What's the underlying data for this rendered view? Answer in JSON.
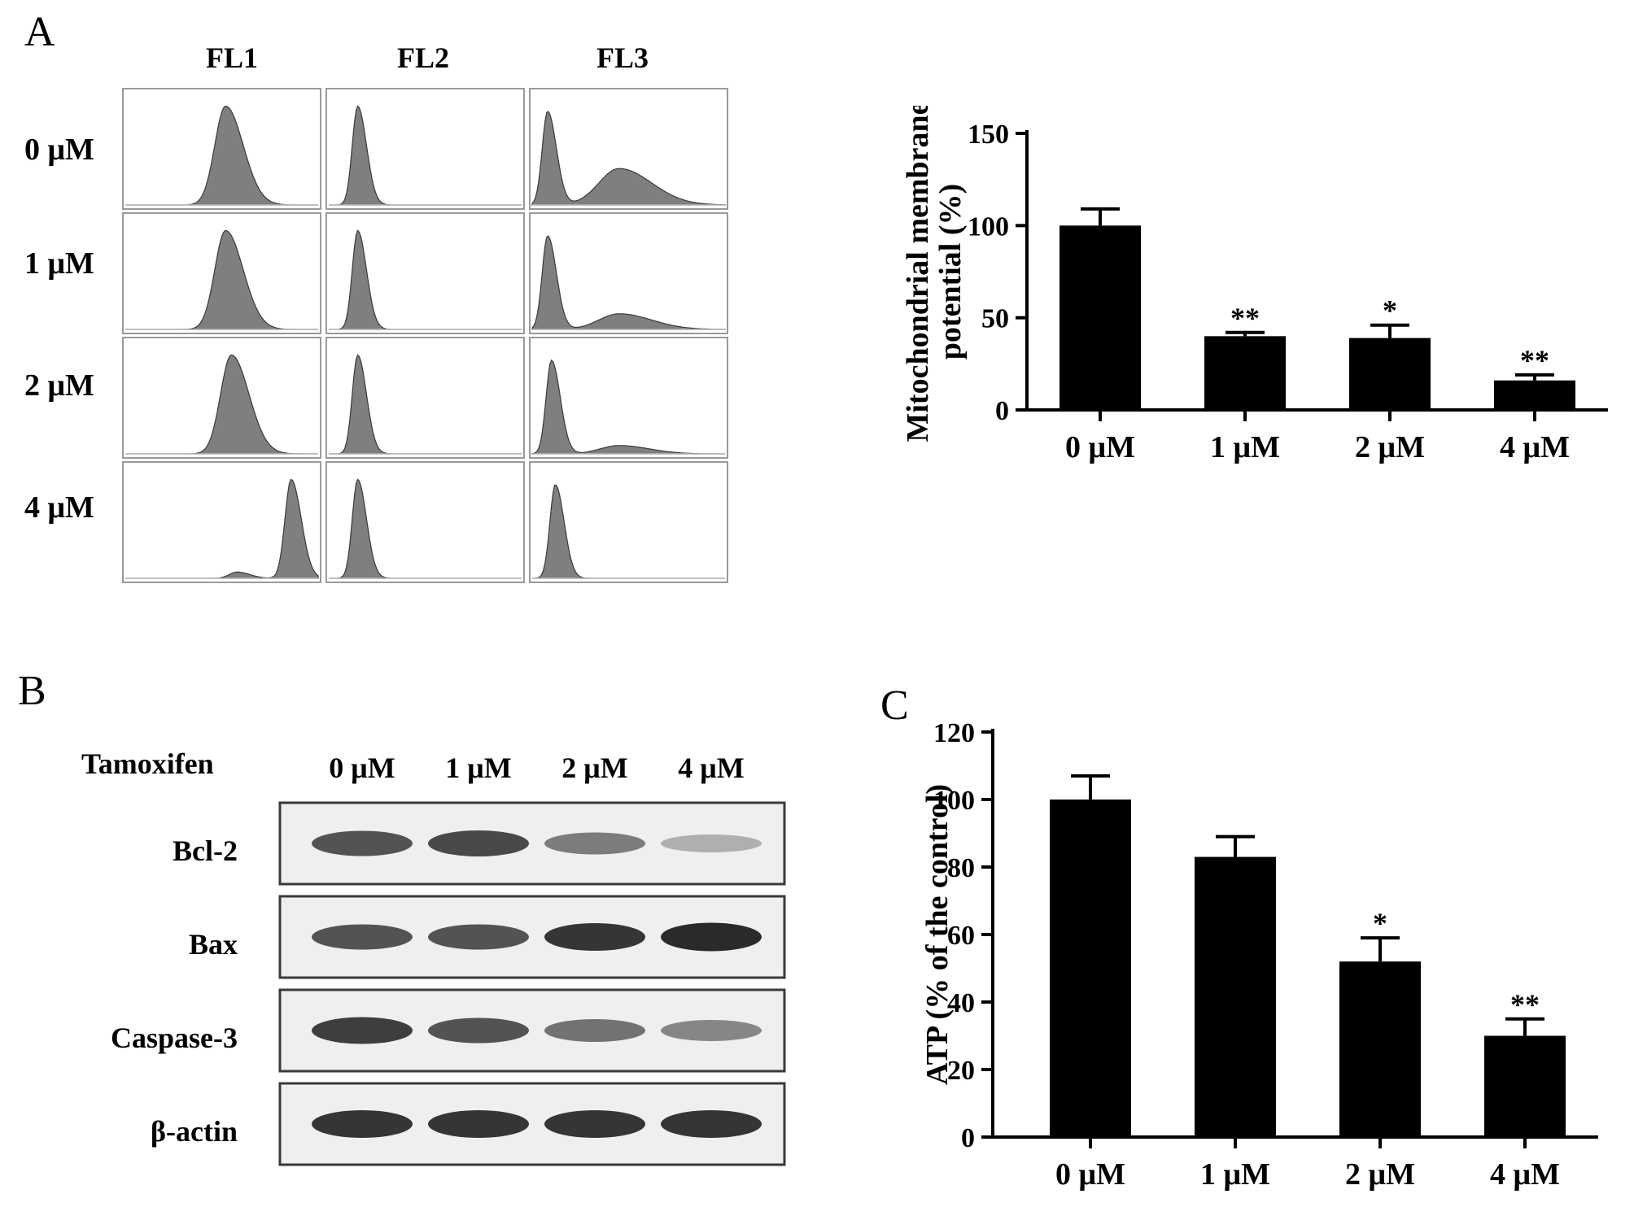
{
  "panels": {
    "A": "A",
    "B": "B",
    "C": "C"
  },
  "panelA": {
    "flow_columns": [
      "FL1",
      "FL2",
      "FL3"
    ],
    "flow_rows": [
      "0 μM",
      "1 μM",
      "2 μM",
      "4 μM"
    ]
  },
  "panelB": {
    "treatment_label": "Tamoxifen",
    "concentrations": [
      "0 μM",
      "1 μM",
      "2 μM",
      "4 μM"
    ],
    "proteins": [
      "Bcl-2",
      "Bax",
      "Caspase-3",
      "β-actin"
    ],
    "band_intensity": [
      [
        0.75,
        0.8,
        0.55,
        0.3
      ],
      [
        0.75,
        0.75,
        0.9,
        0.95
      ],
      [
        0.85,
        0.75,
        0.6,
        0.5
      ],
      [
        0.9,
        0.9,
        0.9,
        0.9
      ]
    ]
  },
  "chart_data": [
    {
      "type": "bar",
      "categories": [
        "0 μM",
        "1 μM",
        "2 μM",
        "4 μM"
      ],
      "values": [
        100,
        40,
        39,
        16
      ],
      "errors": [
        9,
        2,
        7,
        3
      ],
      "annotations": [
        "",
        "**",
        "*",
        "**"
      ],
      "ylabel_lines": [
        "Mitochondrial membrane",
        "potential (%)"
      ],
      "ylim": [
        0,
        150
      ],
      "yticks": [
        0,
        50,
        100,
        150
      ],
      "color": "#000000"
    },
    {
      "type": "bar",
      "categories": [
        "0 μM",
        "1 μM",
        "2 μM",
        "4 μM"
      ],
      "values": [
        100,
        83,
        52,
        30
      ],
      "errors": [
        7,
        6,
        7,
        5
      ],
      "annotations": [
        "",
        "",
        "*",
        "**"
      ],
      "ylabel_lines": [
        "ATP (% of the control)"
      ],
      "ylim": [
        0,
        120
      ],
      "yticks": [
        0,
        20,
        40,
        60,
        80,
        100,
        120
      ],
      "color": "#000000"
    }
  ]
}
